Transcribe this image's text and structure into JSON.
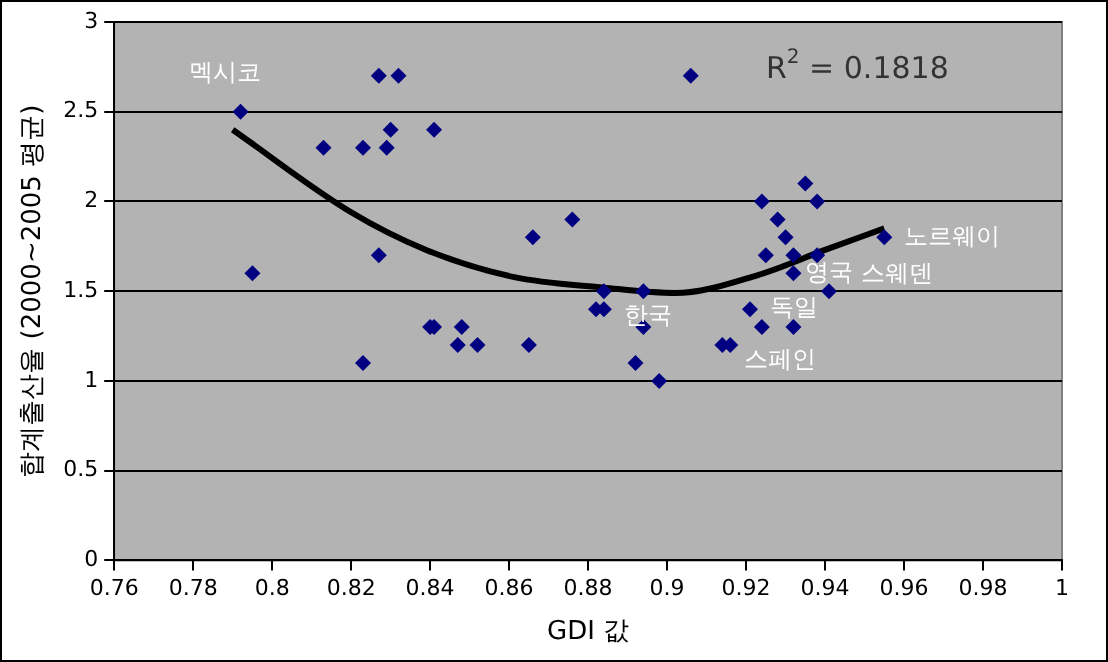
{
  "chart_data": {
    "type": "scatter",
    "xlabel": "GDI 값",
    "ylabel": "합계출산율 (2000~2005 평균)",
    "xlim": [
      0.76,
      1
    ],
    "xticks": [
      0.76,
      0.78,
      0.8,
      0.82,
      0.84,
      0.86,
      0.88,
      0.9,
      0.92,
      0.94,
      0.96,
      0.98,
      1
    ],
    "ylim": [
      0,
      3
    ],
    "yticks": [
      0,
      0.5,
      1,
      1.5,
      2,
      2.5,
      3
    ],
    "grid": "y",
    "legend": false,
    "marker": "diamond",
    "series": [
      {
        "type": "scatter",
        "color": "#000080",
        "x": [
          0.792,
          0.795,
          0.827,
          0.832,
          0.813,
          0.823,
          0.829,
          0.83,
          0.841,
          0.827,
          0.823,
          0.84,
          0.841,
          0.848,
          0.847,
          0.852,
          0.865,
          0.866,
          0.876,
          0.882,
          0.884,
          0.884,
          0.906,
          0.894,
          0.894,
          0.892,
          0.898,
          0.914,
          0.916,
          0.921,
          0.924,
          0.932,
          0.924,
          0.925,
          0.928,
          0.93,
          0.932,
          0.932,
          0.935,
          0.938,
          0.938,
          0.941,
          0.955
        ],
        "values": [
          2.5,
          1.6,
          2.7,
          2.7,
          2.3,
          2.3,
          2.3,
          2.4,
          2.4,
          1.7,
          1.1,
          1.3,
          1.3,
          1.3,
          1.2,
          1.2,
          1.2,
          1.8,
          1.9,
          1.4,
          1.4,
          1.5,
          2.7,
          1.5,
          1.3,
          1.1,
          1.0,
          1.2,
          1.2,
          1.4,
          1.3,
          1.3,
          2.0,
          1.7,
          1.9,
          1.8,
          1.7,
          1.6,
          2.1,
          2.0,
          1.7,
          1.5,
          1.8
        ]
      },
      {
        "type": "line",
        "color": "#000000",
        "marker": "none",
        "x": [
          0.79,
          0.82,
          0.839,
          0.861,
          0.884,
          0.902,
          0.923,
          0.94,
          0.955
        ],
        "values": [
          2.4,
          1.94,
          1.73,
          1.58,
          1.52,
          1.49,
          1.59,
          1.73,
          1.85
        ]
      }
    ],
    "annotations": [
      {
        "text": "멕시코",
        "x": 0.792,
        "y": 2.5
      },
      {
        "text": "한국",
        "x": 0.884,
        "y": 1.4
      },
      {
        "text": "독일",
        "x": 0.921,
        "y": 1.4
      },
      {
        "text": "스페인",
        "x": 0.916,
        "y": 1.2
      },
      {
        "text": "영국",
        "x": 0.932,
        "y": 1.6
      },
      {
        "text": "스웨덴",
        "x": 0.941,
        "y": 1.5
      },
      {
        "text": "노르웨이",
        "x": 0.955,
        "y": 1.8
      },
      "R$^{2}$ = 0.1818"
    ]
  }
}
